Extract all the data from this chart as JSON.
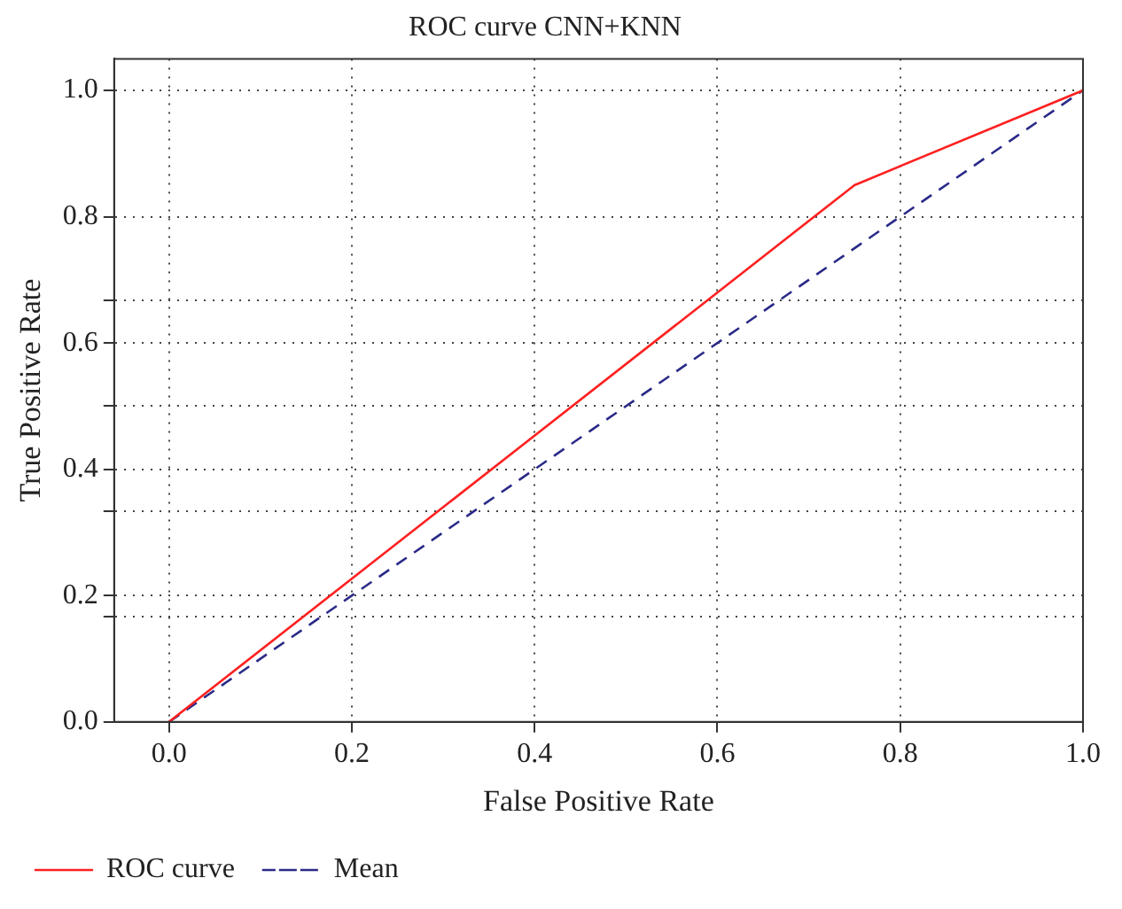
{
  "chart_data": {
    "type": "line",
    "title": "ROC curve CNN+KNN",
    "xlabel": "False Positive Rate",
    "ylabel": "True Positive Rate",
    "series": [
      {
        "name": "ROC curve",
        "color": "#ff2020",
        "x": [
          0,
          0.75,
          1
        ],
        "values": [
          0,
          0.85,
          1
        ],
        "line_style": "solid"
      },
      {
        "name": "Mean",
        "color": "#2a2a88",
        "x": [
          0,
          1
        ],
        "values": [
          0,
          1
        ],
        "line_style": "dashed"
      }
    ],
    "xlim": [
      -0.06,
      1.0
    ],
    "xticks": [
      {
        "value": 0,
        "label": "0.0"
      },
      0.2,
      0.4,
      0.6,
      0.8,
      {
        "value": 1,
        "label": "1.0"
      }
    ],
    "ylim": [
      0,
      1.05
    ],
    "yticks": [
      {
        "value": 0,
        "label": "0.0"
      },
      {
        "value": 0.167,
        "label": null
      },
      0.2,
      {
        "value": 0.333,
        "label": null
      },
      0.4,
      {
        "value": 0.5,
        "label": null
      },
      0.6,
      {
        "value": 0.667,
        "label": null
      },
      0.8,
      {
        "value": 1,
        "label": "1.0"
      }
    ],
    "grid": true,
    "legend": "bottom left",
    "marker": "none"
  }
}
